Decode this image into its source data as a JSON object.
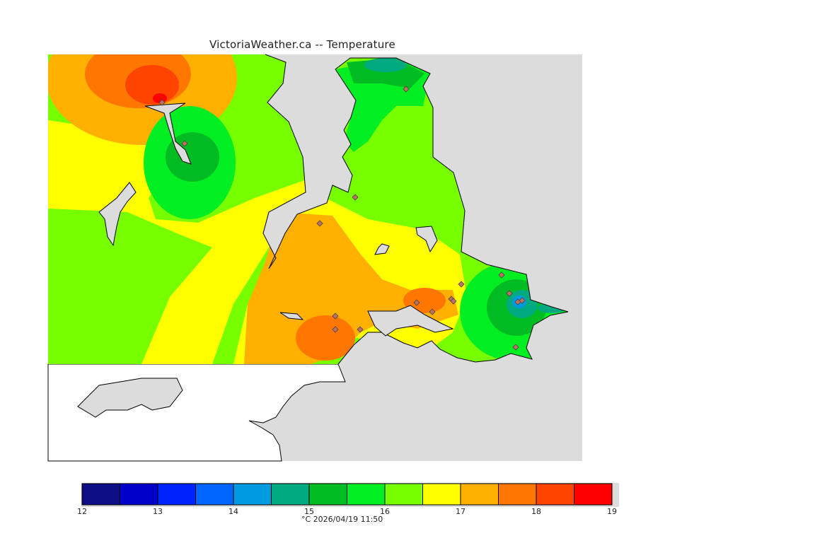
{
  "title": "VictoriaWeather.ca  -- Temperature",
  "colorbar": {
    "ticks": [
      "12",
      "13",
      "14",
      "15",
      "16",
      "17",
      "18",
      "19"
    ],
    "units_label": "°C  2026/04/19 11:50",
    "bins": [
      {
        "lo": 12.0,
        "hi": 12.5,
        "color": "#0d0d85"
      },
      {
        "lo": 12.5,
        "hi": 13.0,
        "color": "#0000c8"
      },
      {
        "lo": 13.0,
        "hi": 13.5,
        "color": "#0022ff"
      },
      {
        "lo": 13.5,
        "hi": 14.0,
        "color": "#0066ff"
      },
      {
        "lo": 14.0,
        "hi": 14.5,
        "color": "#009ae0"
      },
      {
        "lo": 14.5,
        "hi": 15.0,
        "color": "#00aa80"
      },
      {
        "lo": 15.0,
        "hi": 15.5,
        "color": "#00bb22"
      },
      {
        "lo": 15.5,
        "hi": 16.0,
        "color": "#00ee22"
      },
      {
        "lo": 16.0,
        "hi": 16.5,
        "color": "#77ff00"
      },
      {
        "lo": 16.5,
        "hi": 17.0,
        "color": "#ffff00"
      },
      {
        "lo": 17.0,
        "hi": 17.5,
        "color": "#ffb000"
      },
      {
        "lo": 17.5,
        "hi": 18.0,
        "color": "#ff7700"
      },
      {
        "lo": 18.0,
        "hi": 18.5,
        "color": "#ff4400"
      },
      {
        "lo": 18.5,
        "hi": 19.0,
        "color": "#ff0000"
      }
    ]
  },
  "colors": {
    "water": "#dcdcdc",
    "land_outside": "#ffffff",
    "coastline": "#000000"
  }
}
